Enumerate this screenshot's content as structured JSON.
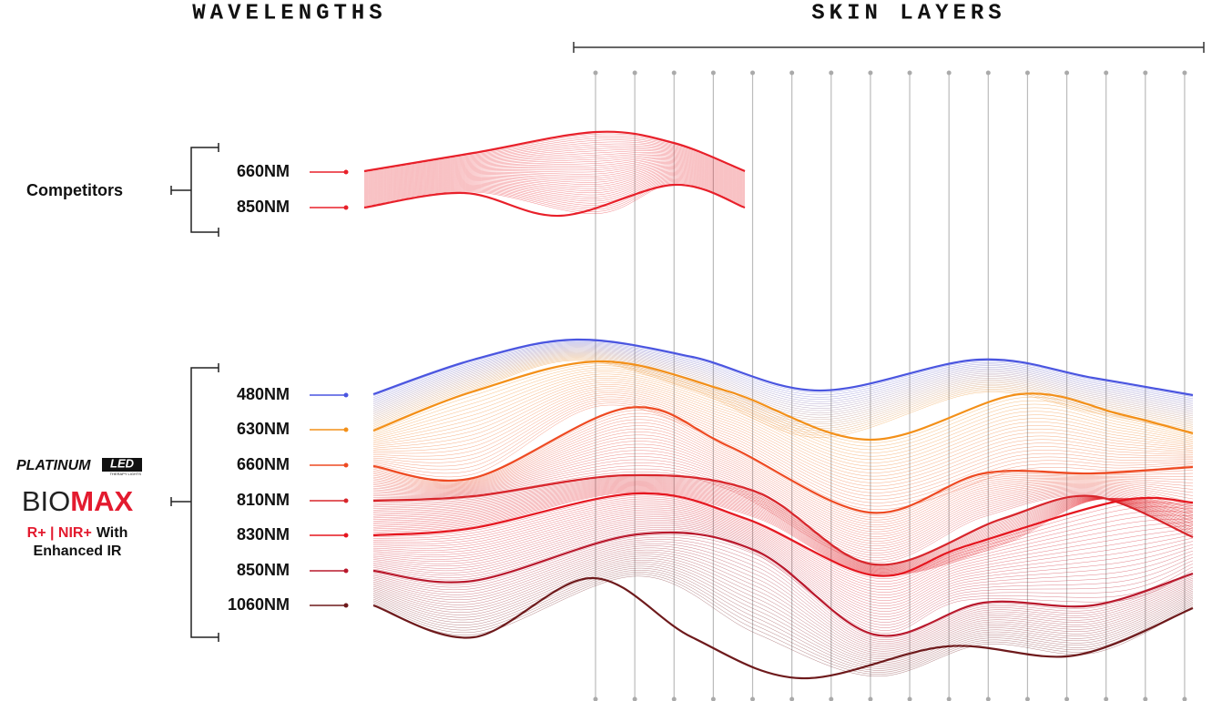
{
  "header": {
    "wavelengths": "WAVELENGTHS",
    "skin_layers": "SKIN LAYERS"
  },
  "competitors": {
    "label": "Competitors",
    "wavelengths": [
      {
        "label": "660NM",
        "color": "#e8202a"
      },
      {
        "label": "850NM",
        "color": "#e8202a"
      }
    ]
  },
  "biomax": {
    "brand": "PLATINUM",
    "brand_mark": "LED",
    "brand_sub": "THERAPY LIGHTS",
    "product_prefix": "BIO",
    "product_suffix": "MAX",
    "feature_red": "R+ | NIR+",
    "feature_rest": "With",
    "feature_line2": "Enhanced IR",
    "wavelengths": [
      {
        "label": "480NM",
        "color": "#4a55e0"
      },
      {
        "label": "630NM",
        "color": "#f39019"
      },
      {
        "label": "660NM",
        "color": "#ee4a22"
      },
      {
        "label": "810NM",
        "color": "#d8262c"
      },
      {
        "label": "830NM",
        "color": "#e5161f"
      },
      {
        "label": "850NM",
        "color": "#b9182c"
      },
      {
        "label": "1060NM",
        "color": "#6e1a1c"
      }
    ]
  }
}
